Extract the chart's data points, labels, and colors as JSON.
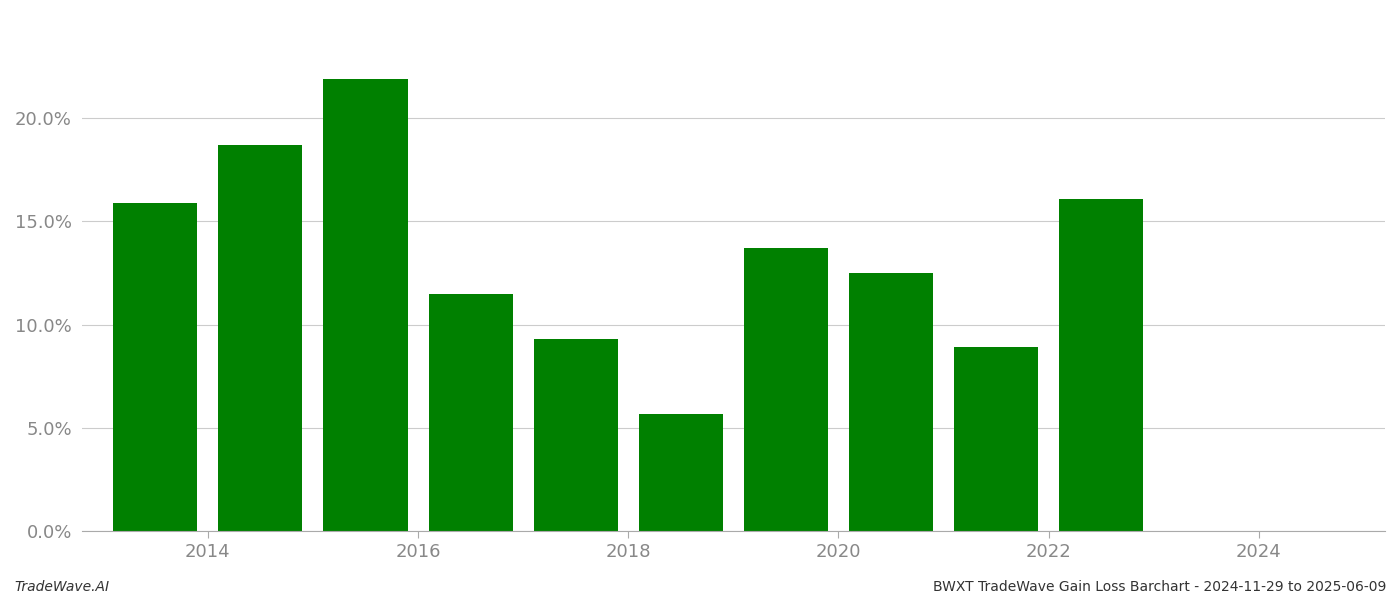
{
  "bar_years": [
    2013,
    2014,
    2015,
    2016,
    2017,
    2018,
    2019,
    2020,
    2021,
    2022
  ],
  "bar_values": [
    0.159,
    0.187,
    0.219,
    0.115,
    0.093,
    0.057,
    0.137,
    0.125,
    0.089,
    0.161
  ],
  "bar_color": "#008000",
  "background_color": "#ffffff",
  "grid_color": "#cccccc",
  "tick_label_color": "#888888",
  "title_text": "BWXT TradeWave Gain Loss Barchart - 2024-11-29 to 2025-06-09",
  "watermark_text": "TradeWave.AI",
  "ylim": [
    0,
    0.25
  ],
  "yticks": [
    0.0,
    0.05,
    0.1,
    0.15,
    0.2
  ],
  "xtick_labels": [
    "2014",
    "2016",
    "2018",
    "2020",
    "2022",
    "2024"
  ],
  "xtick_positions": [
    2013.5,
    2015.5,
    2017.5,
    2019.5,
    2021.5,
    2023.5
  ],
  "xlim": [
    2012.3,
    2024.7
  ],
  "bar_width": 0.8,
  "figsize": [
    14.0,
    6.0
  ],
  "dpi": 100
}
